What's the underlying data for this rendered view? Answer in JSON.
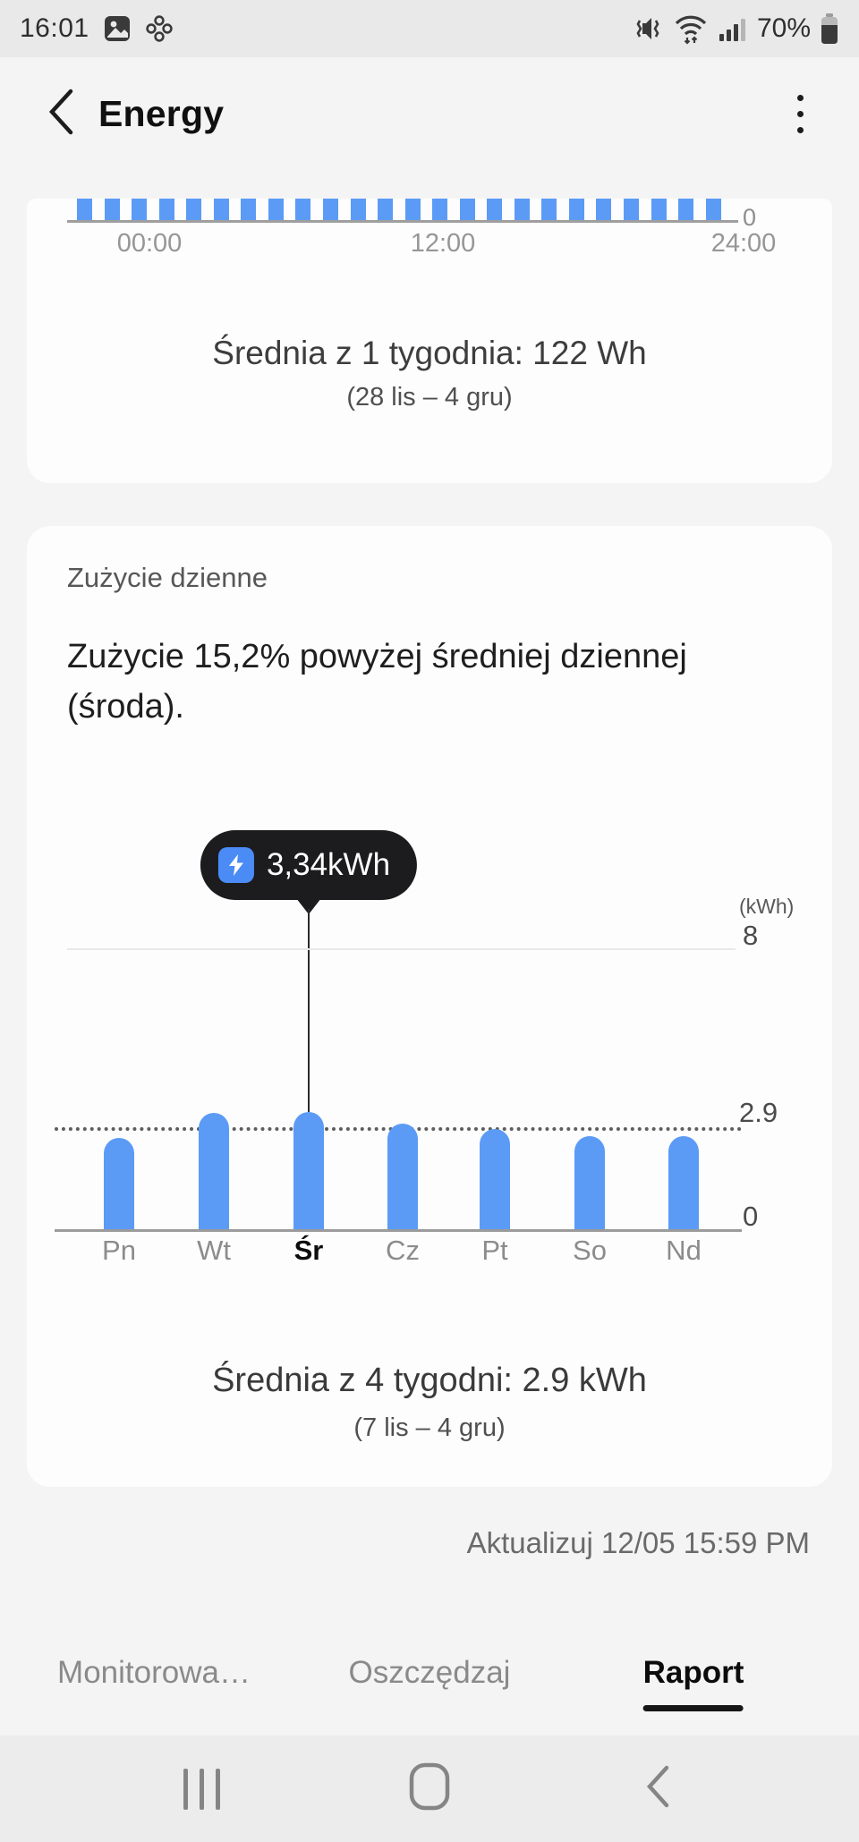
{
  "colors": {
    "bar_blue": "#5b9bf6",
    "tooltip_bg": "#1c1c1e",
    "tooltip_icon_blue": "#4b8bf5",
    "tab_active": "#0c0c0c",
    "page_background": "#f4f4f4"
  },
  "status_bar": {
    "time": "16:01",
    "battery_percent": "70%",
    "left_icons": [
      "gallery-icon",
      "clover-app-icon"
    ],
    "right_icons": [
      "mute-vibrate-icon",
      "wifi-icon",
      "signal-icon",
      "battery-icon"
    ]
  },
  "header": {
    "title": "Energy",
    "back_icon": "back-chevron-icon",
    "menu_icon": "kebab-menu-icon"
  },
  "hourly_card": {
    "chart_data": {
      "type": "bar",
      "x_tick_labels": [
        "00:00",
        "12:00",
        "24:00"
      ],
      "y_tick_labels": [
        "0"
      ],
      "visible_bar_count": 24,
      "bar_color": "#5b9bf6"
    },
    "average_text": "Średnia z 1 tygodnia: 122 Wh",
    "range_text": "(28 lis – 4 gru)"
  },
  "daily_card": {
    "title": "Zużycie dzienne",
    "insight": "Zużycie 15,2% powyżej średniej dziennej (środa).",
    "tooltip": {
      "value": "3,34kWh",
      "icon": "lightning-bolt-icon"
    },
    "chart_data": {
      "type": "bar",
      "categories": [
        "Pn",
        "Wt",
        "Śr",
        "Cz",
        "Pt",
        "So",
        "Nd"
      ],
      "values": [
        2.6,
        3.3,
        3.34,
        3.0,
        2.85,
        2.65,
        2.65
      ],
      "selected_category": "Śr",
      "selected_value_label": "3,34kWh",
      "unit_label": "(kWh)",
      "ylim": [
        0,
        8
      ],
      "y_tick_labels": [
        "0",
        "2.9",
        "8"
      ],
      "average_value": 2.9,
      "average_line_style": "dotted",
      "grid": "light gridline at 8, solid axis at 0",
      "legend": "none",
      "bar_color": "#5b9bf6"
    },
    "average_text": "Średnia z 4 tygodni: 2.9 kWh",
    "range_text": "(7 lis – 4 gru)"
  },
  "footer": {
    "updated_text": "Aktualizuj 12/05 15:59 PM"
  },
  "tabs": [
    {
      "label": "Monitorowa…",
      "active": false
    },
    {
      "label": "Oszczędzaj",
      "active": false
    },
    {
      "label": "Raport",
      "active": true
    }
  ],
  "nav_bar": {
    "icons": [
      "recents-icon",
      "home-icon",
      "back-nav-icon"
    ]
  }
}
